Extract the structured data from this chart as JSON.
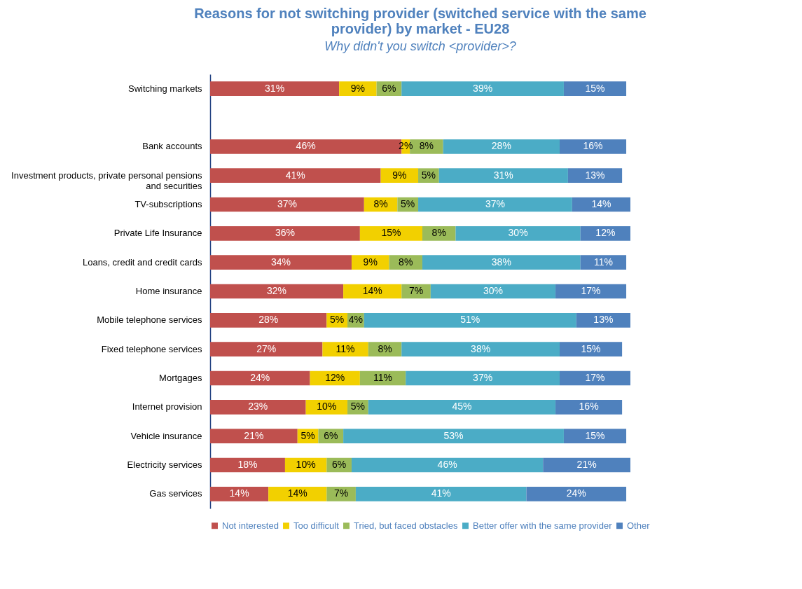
{
  "chart_data": {
    "type": "bar",
    "orientation": "horizontal",
    "stacked": true,
    "title": "Reasons for not switching provider (switched service with the same provider) by market - EU28",
    "subtitle": "Why didn't you switch <provider>?",
    "categories": [
      "Switching markets",
      null,
      "Bank accounts",
      "Investment products, private personal pensions and securities",
      "TV-subscriptions",
      "Private Life Insurance",
      "Loans, credit and credit cards",
      "Home insurance",
      "Mobile telephone services",
      "Fixed telephone services",
      "Mortgages",
      "Internet provision",
      "Vehicle insurance",
      "Electricity services",
      "Gas services"
    ],
    "xlim": [
      0,
      101
    ],
    "legend": "bottom",
    "tick_labels": "y",
    "series": [
      {
        "name": "Not interested",
        "color": "#c0504d",
        "values": [
          31,
          null,
          46,
          41,
          37,
          36,
          34,
          32,
          28,
          27,
          24,
          23,
          21,
          18,
          14
        ],
        "value_labels": [
          "31%",
          null,
          "46%",
          "41%",
          "37%",
          "36%",
          "34%",
          "32%",
          "28%",
          "27%",
          "24%",
          "23%",
          "21%",
          "18%",
          "14%"
        ]
      },
      {
        "name": "Too difficult",
        "color": "#f2d000",
        "values": [
          9,
          null,
          2,
          9,
          8,
          15,
          9,
          14,
          5,
          11,
          12,
          10,
          5,
          10,
          14
        ],
        "value_labels": [
          "9%",
          null,
          "2%",
          "9%",
          "8%",
          "15%",
          "9%",
          "14%",
          "5%",
          "11%",
          "12%",
          "10%",
          "5%",
          "10%",
          "14%"
        ]
      },
      {
        "name": "Tried, but faced obstacles",
        "color": "#9bbb59",
        "values": [
          6,
          null,
          8,
          5,
          5,
          8,
          8,
          7,
          4,
          8,
          11,
          5,
          6,
          6,
          7
        ],
        "value_labels": [
          "6%",
          null,
          "8%",
          "5%",
          "5%",
          "8%",
          "8%",
          "7%",
          "4%",
          "8%",
          "11%",
          "5%",
          "6%",
          "6%",
          "7%"
        ]
      },
      {
        "name": "Better offer with the same provider",
        "color": "#4bacc6",
        "values": [
          39,
          null,
          28,
          31,
          37,
          30,
          38,
          30,
          51,
          38,
          37,
          45,
          53,
          46,
          41
        ],
        "value_labels": [
          "39%",
          null,
          "28%",
          "31%",
          "37%",
          "30%",
          "38%",
          "30%",
          "51%",
          "38%",
          "37%",
          "45%",
          "53%",
          "46%",
          "41%"
        ]
      },
      {
        "name": "Other",
        "color": "#4f81bd",
        "values": [
          15,
          null,
          16,
          13,
          14,
          12,
          11,
          17,
          13,
          15,
          17,
          16,
          15,
          21,
          24
        ],
        "value_labels": [
          "15%",
          null,
          "16%",
          "13%",
          "14%",
          "12%",
          "11%",
          "17%",
          "13%",
          "15%",
          "17%",
          "16%",
          "15%",
          "21%",
          "24%"
        ]
      }
    ]
  }
}
